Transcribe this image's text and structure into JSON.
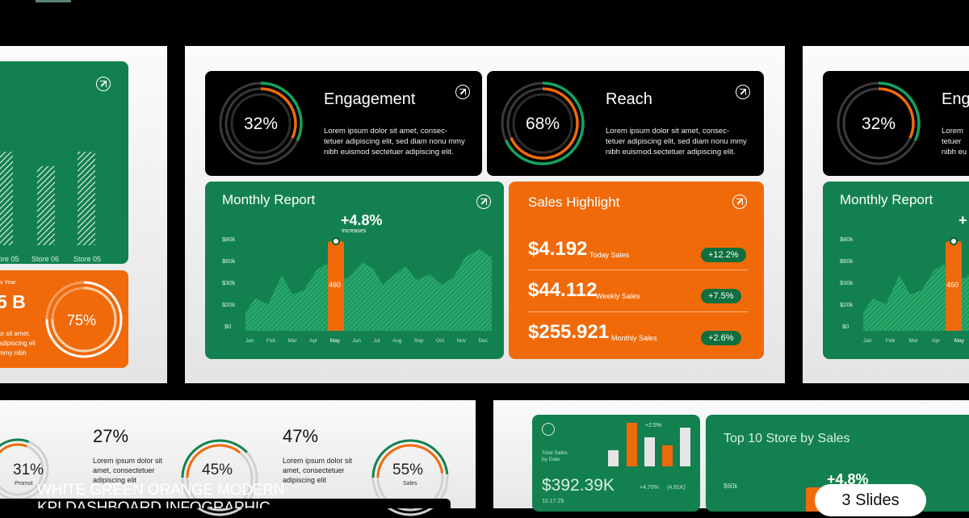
{
  "center": {
    "engagement": {
      "title": "Engagement",
      "pct": "32%",
      "value": 0.32,
      "desc": "Lorem ipsum dolor sit amet, consec-\ntetuer adipiscing elit, sed diam nonu mmy\nnibh euismod sectetuer adipiscing elit."
    },
    "reach": {
      "title": "Reach",
      "pct": "68%",
      "value": 0.68,
      "desc": "Lorem ipsum dolor sit amet, consec-\ntetuer adipiscing elit, sed diam nonu mmy\nnibh euismod.sectetuer adipiscing elit."
    },
    "monthly": {
      "title": "Monthly Report",
      "callout_value": "+4.8%",
      "callout_label": "Increases",
      "bar_label": "460",
      "yticks": [
        "$80k",
        "$60k",
        "$30k",
        "$20k",
        "$0"
      ],
      "months": [
        "Jan",
        "Feb",
        "Mar",
        "Apr",
        "May",
        "Jun",
        "Jul",
        "Aug",
        "Sep",
        "Oct",
        "Nov",
        "Dec"
      ]
    },
    "sales": {
      "title": "Sales Highlight",
      "rows": [
        {
          "amount": "$4.192",
          "label": "Today Sales",
          "change": "+12.2%"
        },
        {
          "amount": "$44.112",
          "label": "Weekly Sales",
          "change": "+7.5%"
        },
        {
          "amount": "$255.921",
          "label": "Monthly Sales",
          "change": "+2.6%"
        }
      ]
    }
  },
  "left": {
    "store_labels": [
      "ore 05",
      "Store 06",
      "Store 05"
    ],
    "orange_label": "s Year",
    "orange_value": "5 B",
    "orange_pct": "75%",
    "orange_desc": "or sit amet,\nadipiscing eli\nmmy nibh"
  },
  "right": {
    "pct": "32%",
    "title": "Eng",
    "desc": "Lorem\ntetuer\nnibh eu",
    "monthly_title": "Monthly Report",
    "bar_label": "460",
    "callout": "+",
    "yticks": [
      "$80k",
      "$60k",
      "$30k",
      "$20k",
      "$0"
    ],
    "months": [
      "Jan",
      "Feb",
      "Mar",
      "Apr",
      "May"
    ]
  },
  "bottom_left": {
    "pct_a": "27%",
    "pct_b": "47%",
    "ring_1": "31%",
    "ring_1_label": "Promot",
    "ring_2": "45%",
    "ring_3": "55%",
    "ring_3_label": "Sales",
    "desc_a": "Lorem ipsum dolor sit\namet, consectetuer\nadipiscing elit",
    "desc_b": "Lorem ipsum dolor sit\namet, consectetuer\nadipiscing elit"
  },
  "bottom_right": {
    "total_label": "Total Sales\nby Date",
    "total_value": "$392.39K",
    "growth": "+4.76%",
    "growth_abs": "(4.81K)",
    "date": "10.17.29",
    "bar_callout": "+2.5%",
    "top10_title": "Top 10 Store by Sales",
    "top10_tick": "$60k",
    "top10_callout": "+4.8%"
  },
  "caption": {
    "line1": "WHITE GREEN ORANGE MODERN",
    "line2": "KPI DASHBOARD INFOGRAPHIC"
  },
  "badge": "3 Slides"
}
